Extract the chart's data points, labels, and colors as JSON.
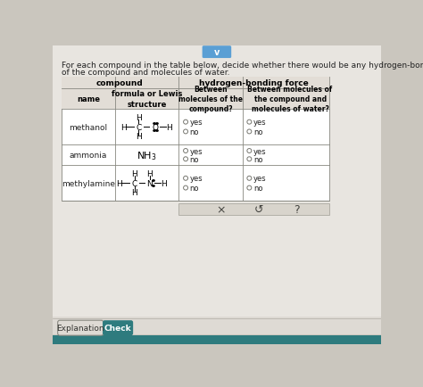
{
  "title_line1": "For each compound in the table below, decide whether there would be any hydrogen-bonding force between molecules of",
  "title_line2": "of the compound and molecules of water.",
  "bg_color": "#cac6be",
  "content_bg": "#e8e5e0",
  "table_bg": "#ffffff",
  "header_bg": "#e2ddd6",
  "bottom_bar_color": "#2e7b7e",
  "bottom_panel_color": "#dedad4",
  "title_fontsize": 6.5,
  "button_explanation": "Explanation",
  "button_check": "Check",
  "check_bg": "#2e7b7e",
  "icon_bg": "#d8d4cc",
  "chevron_bg": "#5a9fd4"
}
